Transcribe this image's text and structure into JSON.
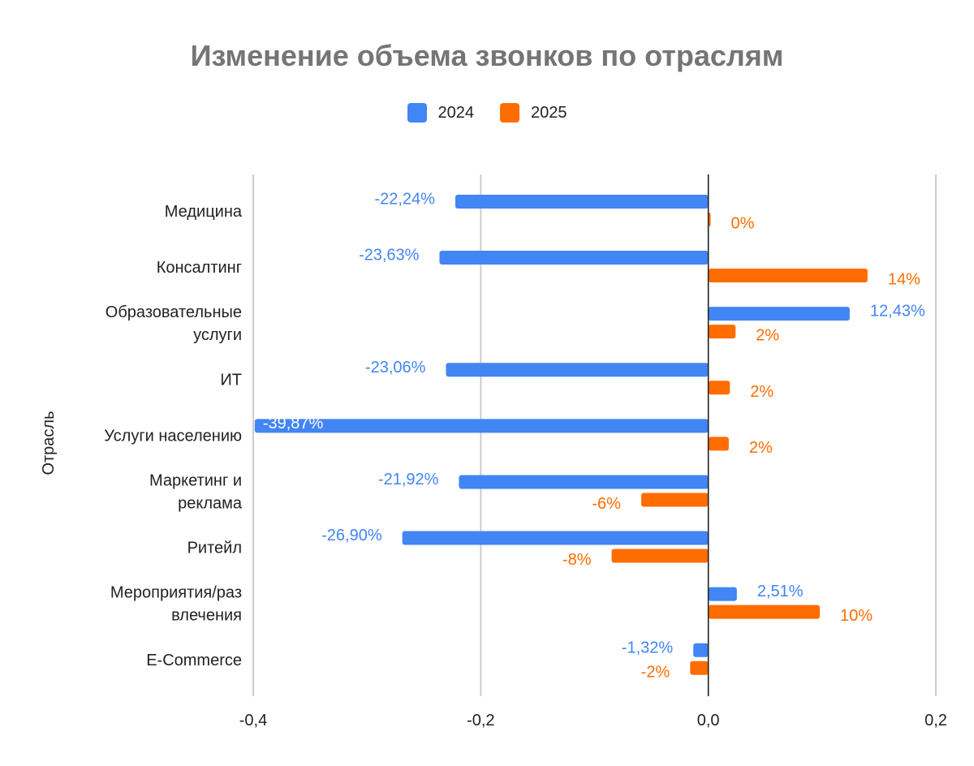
{
  "chart_data": {
    "type": "bar",
    "orientation": "horizontal",
    "title": "Изменение объема звонков по отраслям",
    "xlabel": "",
    "ylabel": "Отрасль",
    "xlim": [
      -0.4,
      0.2
    ],
    "xticks": [
      "-0,4",
      "-0,2",
      "0,0",
      "0,2"
    ],
    "grid": true,
    "legend_position": "top",
    "categories": [
      "Медицина",
      "Консалтинг",
      "Образовательные услуги",
      "ИТ",
      "Услуги населению",
      "Маркетинг и реклама",
      "Ритейл",
      "Мероприятия/развлечения",
      "E-Commerce"
    ],
    "category_lines": [
      [
        "Медицина"
      ],
      [
        "Консалтинг"
      ],
      [
        "Образовательные",
        "услуги"
      ],
      [
        "ИТ"
      ],
      [
        "Услуги населению"
      ],
      [
        "Маркетинг и",
        "реклама"
      ],
      [
        "Ритейл"
      ],
      [
        "Мероприятия/раз",
        "влечения"
      ],
      [
        "E-Commerce"
      ]
    ],
    "series": [
      {
        "name": "2024",
        "color": "#4285f4",
        "values": [
          -0.2224,
          -0.2363,
          0.1243,
          -0.2306,
          -0.3987,
          -0.2192,
          -0.269,
          0.0251,
          -0.0132
        ],
        "labels": [
          "-22,24%",
          "-23,63%",
          "12,43%",
          "-23,06%",
          "-39,87%",
          "-21,92%",
          "-26,90%",
          "2,51%",
          "-1,32%"
        ]
      },
      {
        "name": "2025",
        "color": "#ff6d01",
        "values": [
          0.002,
          0.14,
          0.024,
          0.019,
          0.018,
          -0.059,
          -0.085,
          0.098,
          -0.016
        ],
        "labels": [
          "0%",
          "14%",
          "2%",
          "2%",
          "2%",
          "-6%",
          "-8%",
          "10%",
          "-2%"
        ]
      }
    ]
  }
}
